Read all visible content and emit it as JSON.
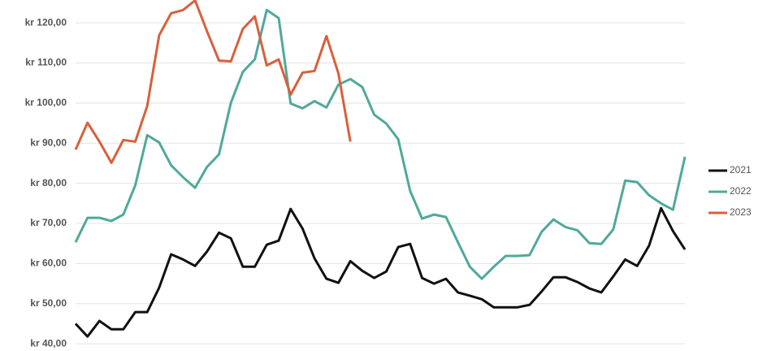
{
  "chart_data": {
    "type": "line",
    "categories": [
      null,
      null,
      null,
      null,
      null,
      null,
      null,
      null,
      null,
      null,
      null,
      null,
      null,
      null,
      null,
      null,
      null,
      null,
      null,
      null,
      null,
      null,
      null,
      null,
      null,
      null,
      null,
      null,
      null,
      null,
      null,
      null,
      null,
      null,
      null,
      null,
      null,
      null,
      null,
      null,
      null,
      null,
      null,
      null,
      null,
      null,
      null,
      null,
      null,
      null,
      null,
      null
    ],
    "series": [
      {
        "name": "2021",
        "color": "#111111",
        "values": [
          45,
          41.8,
          45.7,
          43.6,
          43.6,
          47.9,
          47.9,
          54,
          62.3,
          61,
          59.4,
          63,
          67.7,
          66.3,
          59.2,
          59.2,
          64.7,
          65.7,
          73.6,
          68.7,
          61.3,
          56.2,
          55.2,
          60.6,
          58.2,
          56.4,
          58,
          64.1,
          64.9,
          56.4,
          55,
          56.2,
          52.8,
          52,
          51.1,
          49.1,
          49.1,
          49.1,
          49.7,
          53,
          56.6,
          56.6,
          55.4,
          53.8,
          52.8,
          56.8,
          61,
          59.4,
          64.5,
          73.8,
          68.1,
          63.5
        ]
      },
      {
        "name": "2022",
        "color": "#4fa99b",
        "values": [
          65.3,
          71.4,
          71.4,
          70.6,
          72.2,
          79.5,
          92,
          90.2,
          84.5,
          81.5,
          78.9,
          84.1,
          87.2,
          100.1,
          107.8,
          110.9,
          123.2,
          121.2,
          99.9,
          98.7,
          100.5,
          98.9,
          104.6,
          106,
          104,
          97.1,
          94.9,
          91,
          78.1,
          71.2,
          72.2,
          71.6,
          65.3,
          59.2,
          56.2,
          59.2,
          61.9,
          61.9,
          62.1,
          67.9,
          71,
          69.1,
          68.3,
          65.1,
          64.9,
          68.5,
          80.7,
          80.3,
          77,
          75,
          73.4,
          86.6
        ]
      },
      {
        "name": "2023",
        "color": "#d9603b",
        "values": [
          88.4,
          95.1,
          90.4,
          85.1,
          90.8,
          90.4,
          99.3,
          116.9,
          122.4,
          123.2,
          125.6,
          117.9,
          110.6,
          110.4,
          118.5,
          121.6,
          109.4,
          110.9,
          102.1,
          107.6,
          108,
          116.7,
          107.4,
          90.4,
          null,
          null,
          null,
          null,
          null,
          null,
          null,
          null,
          null,
          null,
          null,
          null,
          null,
          null,
          null,
          null,
          null,
          null,
          null,
          null,
          null,
          null,
          null,
          null,
          null,
          null,
          null,
          null
        ]
      }
    ],
    "ylim": [
      38.2,
      125.7
    ],
    "yticks": [
      {
        "value": 40,
        "label": "kr 40,00"
      },
      {
        "value": 50,
        "label": "kr 50,00"
      },
      {
        "value": 60,
        "label": "kr 60,00"
      },
      {
        "value": 70,
        "label": "kr 70,00"
      },
      {
        "value": 80,
        "label": "kr 80,00"
      },
      {
        "value": 90,
        "label": "kr 90,00"
      },
      {
        "value": 100,
        "label": "kr 100,00"
      },
      {
        "value": 110,
        "label": "kr 110,00"
      },
      {
        "value": 120,
        "label": "kr 120,00"
      }
    ],
    "grid": true,
    "legend": "right"
  }
}
